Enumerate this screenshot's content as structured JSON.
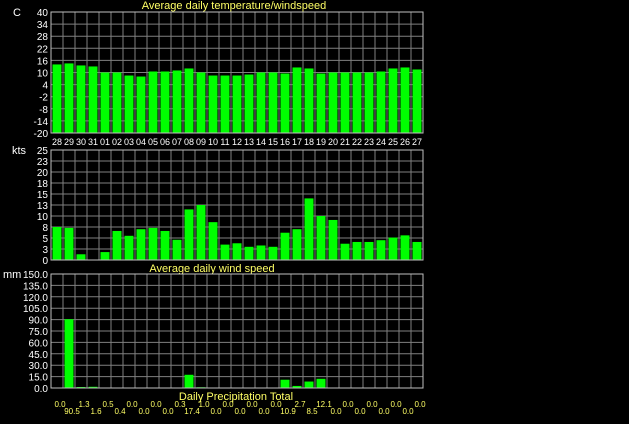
{
  "chart_data": [
    {
      "type": "bar",
      "title": "Average daily temperature/windspeed",
      "ylabel": "C",
      "ylim": [
        -20,
        40
      ],
      "yticks": [
        "40",
        "34",
        "28",
        "22",
        "16",
        "10",
        "4",
        "-2",
        "-8",
        "-14",
        "-20"
      ],
      "categories": [
        "28",
        "29",
        "30",
        "31",
        "01",
        "02",
        "03",
        "04",
        "05",
        "06",
        "07",
        "08",
        "09",
        "10",
        "11",
        "12",
        "13",
        "14",
        "15",
        "16",
        "17",
        "18",
        "19",
        "20",
        "21",
        "22",
        "23",
        "24",
        "25",
        "26",
        "27"
      ],
      "values": [
        14,
        14.5,
        13.5,
        13,
        10,
        10,
        8.5,
        8,
        10.5,
        10.5,
        11,
        12,
        10,
        8.5,
        8.5,
        8.5,
        9,
        10,
        10,
        9.5,
        12.5,
        12,
        9.5,
        10,
        10,
        10,
        10,
        10.5,
        12,
        12.5,
        11.5
      ],
      "grid": true
    },
    {
      "type": "bar",
      "title": "Average daily wind speed",
      "ylabel": "kts",
      "ylim": [
        0,
        25
      ],
      "yticks": [
        "25",
        "23",
        "20",
        "18",
        "15",
        "13",
        "10",
        "8",
        "5",
        "3",
        "0"
      ],
      "values": [
        7.5,
        7.3,
        1.3,
        0,
        1.8,
        6.6,
        5.5,
        7,
        7.3,
        6.6,
        4.6,
        11.5,
        12.5,
        8.6,
        3.5,
        3.8,
        3,
        3.3,
        3,
        6.2,
        7,
        14,
        10,
        9.1,
        3.7,
        4.1,
        4.1,
        4.5,
        5.1,
        5.6,
        4.1
      ],
      "grid": true
    },
    {
      "type": "bar",
      "title": "Daily Precipitation Total",
      "ylabel": "mm",
      "ylim": [
        0,
        150
      ],
      "yticks": [
        "150.0",
        "135.0",
        "120.0",
        "105.0",
        "90.0",
        "75.0",
        "60.0",
        "45.0",
        "30.0",
        "15.0",
        "0.0"
      ],
      "value_labels": [
        "0.0",
        "90.5",
        "1.3",
        "1.6",
        "0.5",
        "0.4",
        "0.0",
        "0.0",
        "0.0",
        "0.0",
        "0.3",
        "17.4",
        "1.0",
        "0.0",
        "0.0",
        "0.0",
        "0.0",
        "0.0",
        "0.0",
        "10.9",
        "2.7",
        "8.5",
        "12.1",
        "0.0",
        "0.0",
        "0.0",
        "0.0",
        "0.0",
        "0.0",
        "0.0",
        "0.0"
      ],
      "values": [
        0,
        90.5,
        1.3,
        1.6,
        0.5,
        0.4,
        0,
        0,
        0,
        0,
        0.3,
        17.4,
        1.0,
        0,
        0,
        0,
        0,
        0,
        0,
        10.9,
        2.7,
        8.5,
        12.1,
        0,
        0,
        0,
        0,
        0,
        0,
        0,
        0
      ],
      "grid": true
    }
  ],
  "colors": {
    "bar": "#00ff00",
    "title": "#ffff66",
    "axis": "#ffffff",
    "background": "#000000"
  }
}
